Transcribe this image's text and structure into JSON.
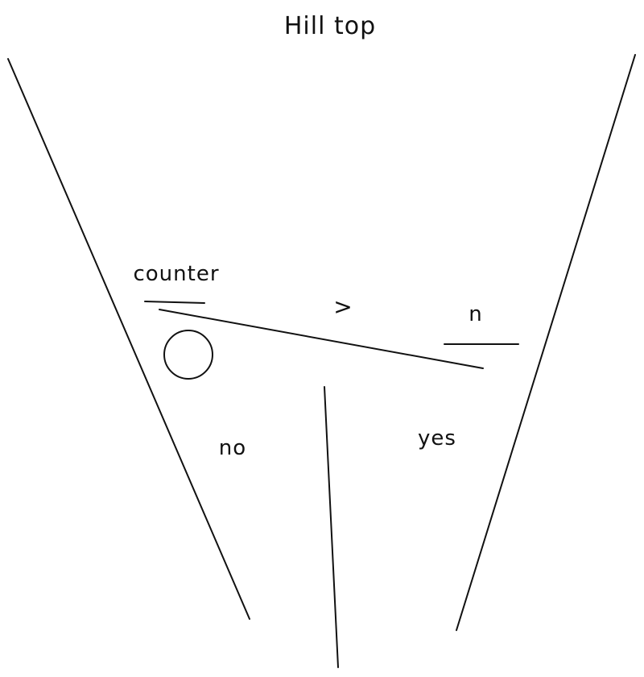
{
  "diagram": {
    "title": "Hill top",
    "labels": {
      "counter": "counter",
      "comparison": ">",
      "n": "n",
      "no": "no",
      "yes": "yes"
    },
    "colors": {
      "background": "#ffffff",
      "ink": "#111111"
    }
  }
}
